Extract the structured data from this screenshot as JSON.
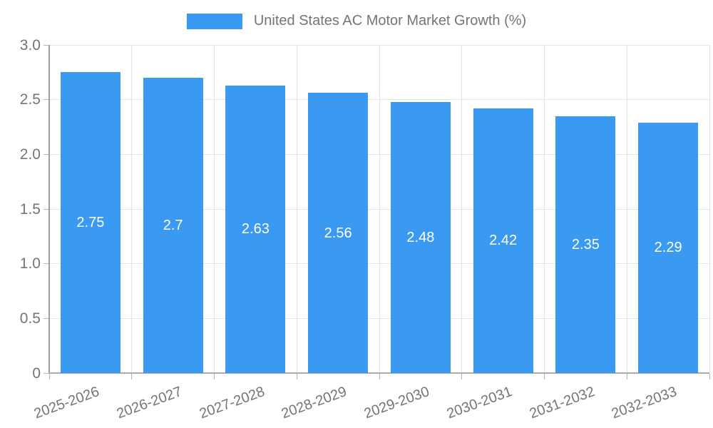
{
  "chart_data": {
    "type": "bar",
    "title": "United States AC Motor Market Growth (%)",
    "legend": {
      "position": "top",
      "label": "United States AC Motor Market Growth (%)"
    },
    "categories": [
      "2025-2026",
      "2026-2027",
      "2027-2028",
      "2028-2029",
      "2029-2030",
      "2030-2031",
      "2031-2032",
      "2032-2033"
    ],
    "values": [
      2.75,
      2.7,
      2.63,
      2.56,
      2.48,
      2.42,
      2.35,
      2.29
    ],
    "value_labels": [
      "2.75",
      "2.7",
      "2.63",
      "2.56",
      "2.48",
      "2.42",
      "2.35",
      "2.29"
    ],
    "xlabel": "",
    "ylabel": "",
    "ylim": [
      0,
      3.0
    ],
    "yticks": [
      0,
      0.5,
      1.0,
      1.5,
      2.0,
      2.5,
      3.0
    ],
    "ytick_labels": [
      "0",
      "0.5",
      "1.0",
      "1.5",
      "2.0",
      "2.5",
      "3.0"
    ],
    "grid": "on",
    "colors": {
      "bar": "#3a99f0",
      "bar_value_text": "#ffffff",
      "gridline": "#e5e5e5",
      "axis": "#9e9e9e",
      "tick_text": "#757575",
      "legend_text": "#757575",
      "background": "#ffffff"
    }
  }
}
